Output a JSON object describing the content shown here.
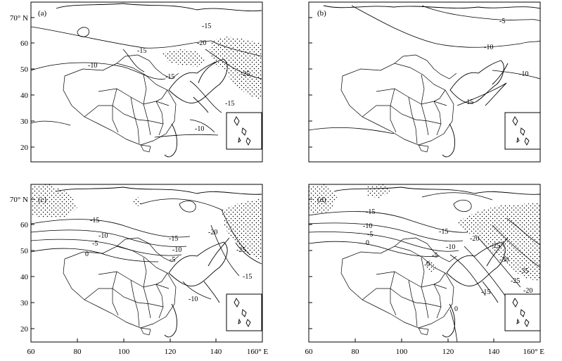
{
  "figure": {
    "panels": [
      {
        "label": "(a)",
        "contour_labels": [
          "-15",
          "-15",
          "-20",
          "-10",
          "-15",
          "-25",
          "-15",
          "-10"
        ]
      },
      {
        "label": "(b)",
        "contour_labels": [
          "-5",
          "-10",
          "-10",
          "-15"
        ]
      },
      {
        "label": "(c)",
        "contour_labels": [
          "-15",
          "-10",
          "-5",
          "0",
          "-15",
          "-20",
          "-25",
          "-10",
          "-5",
          "-15",
          "-10"
        ]
      },
      {
        "label": "(d)",
        "contour_labels": [
          "-15",
          "-10",
          "-5",
          "0",
          "-15",
          "-20",
          "-10",
          "-5",
          "0",
          "-25",
          "-30",
          "-35",
          "-15",
          "-20",
          "-25",
          "0"
        ]
      }
    ],
    "y_tick_labels": [
      "70° N",
      "60",
      "50",
      "40",
      "30",
      "20"
    ],
    "x_tick_labels": [
      "60",
      "80",
      "100",
      "120",
      "140",
      "160° E"
    ]
  }
}
